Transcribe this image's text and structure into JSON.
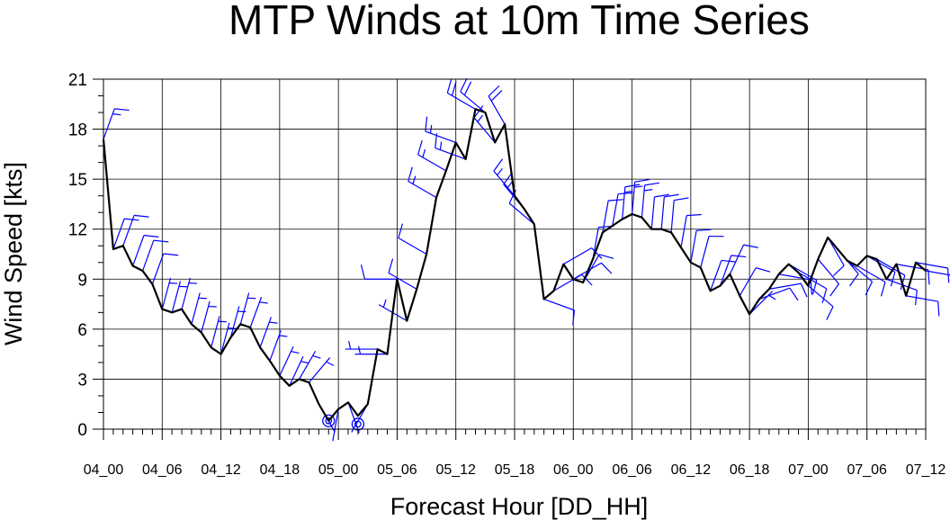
{
  "chart_data": {
    "type": "line",
    "title": "MTP Winds at 10m Time Series",
    "xlabel": "Forecast Hour [DD_HH]",
    "ylabel": "Wind Speed [kts]",
    "xlim": [
      0,
      84
    ],
    "ylim": [
      0,
      21
    ],
    "x_tick_labels": [
      {
        "hour": 0,
        "label": "04_00"
      },
      {
        "hour": 6,
        "label": "04_06"
      },
      {
        "hour": 12,
        "label": "04_12"
      },
      {
        "hour": 18,
        "label": "04_18"
      },
      {
        "hour": 24,
        "label": "05_00"
      },
      {
        "hour": 30,
        "label": "05_06"
      },
      {
        "hour": 36,
        "label": "05_12"
      },
      {
        "hour": 42,
        "label": "05_18"
      },
      {
        "hour": 48,
        "label": "06_00"
      },
      {
        "hour": 54,
        "label": "06_06"
      },
      {
        "hour": 60,
        "label": "06_12"
      },
      {
        "hour": 66,
        "label": "06_18"
      },
      {
        "hour": 72,
        "label": "07_00"
      },
      {
        "hour": 78,
        "label": "07_06"
      },
      {
        "hour": 84,
        "label": "07_12"
      }
    ],
    "y_ticks": [
      0,
      3,
      6,
      9,
      12,
      15,
      18,
      21
    ],
    "grid": true,
    "line_color": "#000000",
    "barb_color": "#0000ff",
    "series": [
      {
        "x": [
          0,
          1,
          2,
          3,
          4,
          5,
          6,
          7,
          8,
          9,
          10,
          11,
          12,
          13,
          14,
          15,
          16,
          17,
          18,
          19,
          20,
          21,
          22,
          23,
          24,
          25,
          26,
          27,
          28,
          29,
          30,
          31,
          32,
          33,
          34,
          35,
          36,
          37,
          38,
          39,
          40,
          41,
          42,
          43,
          44,
          45,
          46,
          47,
          48,
          49,
          50,
          51,
          52,
          53,
          54,
          55,
          56,
          57,
          58,
          59,
          60,
          61,
          62,
          63,
          64,
          65,
          66,
          67,
          68,
          69,
          70,
          71,
          72,
          73,
          74,
          75,
          76,
          77,
          78,
          79,
          80,
          81,
          82,
          83,
          84
        ],
        "values": [
          17.4,
          10.8,
          11.0,
          9.8,
          9.5,
          8.7,
          7.2,
          7.0,
          7.2,
          6.3,
          5.8,
          4.9,
          4.5,
          5.5,
          6.3,
          6.1,
          4.9,
          4.1,
          3.2,
          2.6,
          3.0,
          2.8,
          1.5,
          0.5,
          1.2,
          1.6,
          0.8,
          1.5,
          4.8,
          4.5,
          9.0,
          6.5,
          8.4,
          10.5,
          13.9,
          15.5,
          17.2,
          16.2,
          19.2,
          19.0,
          17.2,
          18.3,
          14.0,
          13.2,
          12.3,
          7.8,
          8.3,
          9.9,
          9.0,
          8.8,
          10.2,
          11.8,
          12.2,
          12.6,
          12.9,
          12.7,
          12.0,
          12.0,
          11.8,
          10.9,
          10.0,
          9.7,
          8.3,
          8.6,
          9.3,
          8.0,
          6.9,
          7.8,
          8.4,
          9.3,
          9.9,
          9.4,
          8.6,
          10.2,
          11.5,
          10.8,
          10.1,
          9.8,
          10.4,
          10.2,
          9.0,
          9.9,
          8.0,
          10.0,
          9.5
        ]
      }
    ],
    "calm_markers": [
      {
        "x": 23,
        "y": 0.5
      },
      {
        "x": 26,
        "y": 0.3
      }
    ],
    "wind_barbs": {
      "x": [
        0,
        1,
        2,
        3,
        4,
        5,
        6,
        7,
        8,
        9,
        10,
        11,
        12,
        13,
        14,
        15,
        16,
        17,
        18,
        19,
        20,
        21,
        22,
        23,
        24,
        25,
        26,
        27,
        28,
        29,
        30,
        31,
        32,
        33,
        34,
        35,
        36,
        37,
        38,
        39,
        40,
        41,
        42,
        43,
        44,
        45,
        46,
        47,
        48,
        49,
        50,
        51,
        52,
        53,
        54,
        55,
        56,
        57,
        58,
        59,
        60,
        61,
        62,
        63,
        64,
        65,
        66,
        67,
        68,
        69,
        70,
        71,
        72,
        73,
        74,
        75,
        76,
        77,
        78,
        79,
        80,
        81,
        82,
        83,
        84
      ],
      "direction_deg": [
        20,
        20,
        20,
        20,
        20,
        20,
        15,
        15,
        15,
        15,
        15,
        15,
        15,
        15,
        15,
        20,
        20,
        20,
        25,
        25,
        30,
        40,
        150,
        170,
        190,
        160,
        150,
        210,
        270,
        270,
        270,
        300,
        300,
        300,
        300,
        300,
        290,
        290,
        300,
        310,
        320,
        330,
        320,
        320,
        310,
        110,
        60,
        60,
        60,
        30,
        10,
        10,
        10,
        5,
        5,
        5,
        5,
        5,
        5,
        10,
        10,
        15,
        20,
        20,
        25,
        30,
        45,
        70,
        80,
        100,
        120,
        120,
        130,
        140,
        150,
        140,
        130,
        120,
        120,
        120,
        110,
        100,
        100,
        100,
        100
      ]
    }
  }
}
